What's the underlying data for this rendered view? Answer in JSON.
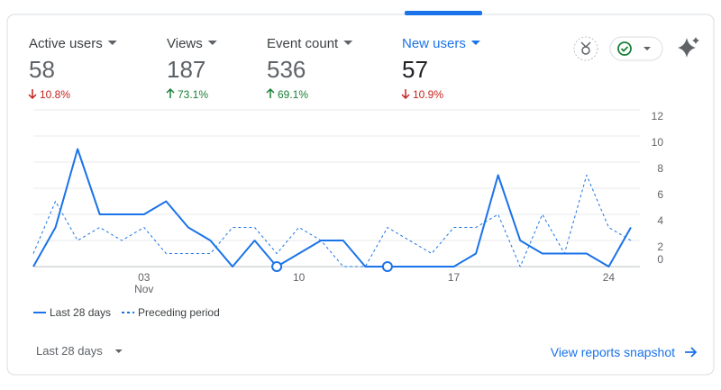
{
  "metrics": [
    {
      "label": "Active users",
      "value": "58",
      "change": "10.8%",
      "direction": "down"
    },
    {
      "label": "Views",
      "value": "187",
      "change": "73.1%",
      "direction": "up"
    },
    {
      "label": "Event count",
      "value": "536",
      "change": "69.1%",
      "direction": "up"
    },
    {
      "label": "New users",
      "value": "57",
      "change": "10.9%",
      "direction": "down",
      "selected": true
    }
  ],
  "chart_data": {
    "type": "line",
    "categories": [
      null,
      null,
      null,
      null,
      null,
      "03",
      null,
      null,
      null,
      null,
      null,
      null,
      "10",
      null,
      null,
      null,
      null,
      null,
      null,
      "17",
      null,
      null,
      null,
      null,
      null,
      null,
      "24",
      null
    ],
    "month_label": "Nov",
    "series": [
      {
        "name": "Last 28 days",
        "color": "#1a73e8",
        "style": "solid",
        "values": [
          0,
          3,
          9,
          4,
          4,
          4,
          5,
          3,
          2,
          0,
          2,
          0,
          1,
          2,
          2,
          0,
          0,
          0,
          0,
          0,
          1,
          7,
          2,
          1,
          1,
          1,
          0,
          3
        ]
      },
      {
        "name": "Preceding period",
        "color": "#1a73e8",
        "style": "dashed",
        "values": [
          1,
          5,
          2,
          3,
          2,
          3,
          1,
          1,
          1,
          3,
          3,
          1,
          3,
          2,
          0,
          0,
          3,
          2,
          1,
          3,
          3,
          4,
          0,
          4,
          1,
          7,
          3,
          2
        ]
      }
    ],
    "annotation_indices": [
      11,
      16
    ],
    "ylim": [
      0,
      12
    ],
    "yticks": [
      0,
      2,
      4,
      6,
      8,
      10,
      12
    ],
    "grid": true
  },
  "footer": {
    "range": "Last 28 days",
    "link": "View reports snapshot"
  }
}
